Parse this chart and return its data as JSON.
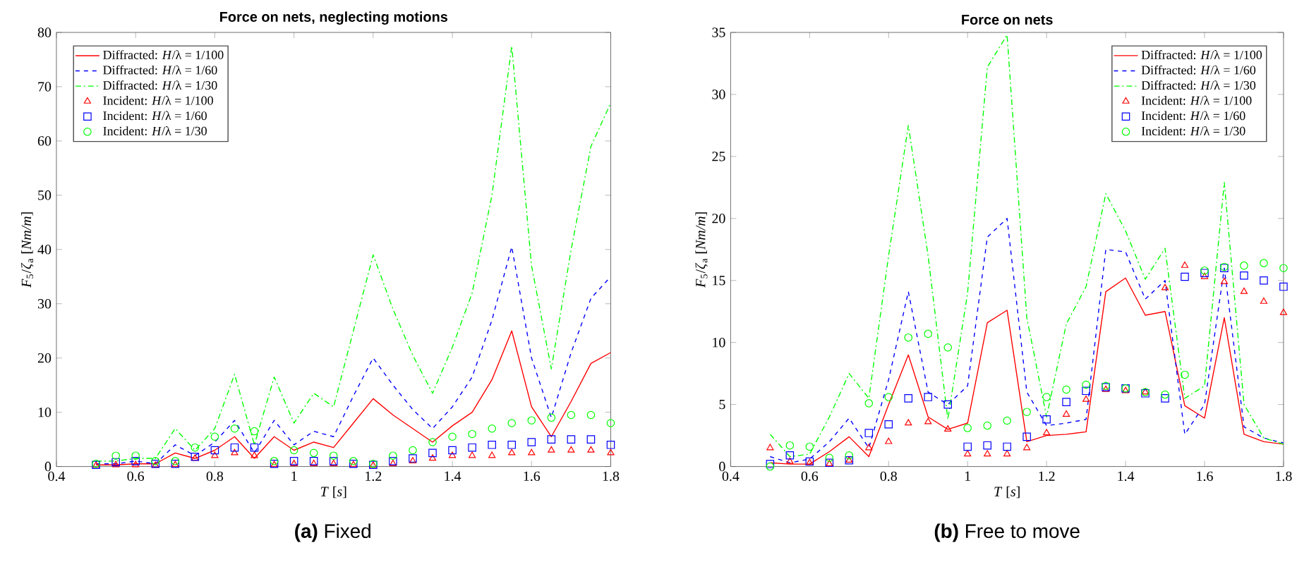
{
  "chart_data": [
    {
      "type": "line",
      "title": "Force on nets, neglecting motions",
      "xlabel": "*T* [*s*]",
      "ylabel": "*F*$_{5}$/*ζ*$_{a}$ [*Nm/m*]",
      "x": [
        0.5,
        0.55,
        0.6,
        0.65,
        0.7,
        0.75,
        0.8,
        0.85,
        0.9,
        0.95,
        1.0,
        1.05,
        1.1,
        1.15,
        1.2,
        1.25,
        1.3,
        1.35,
        1.4,
        1.45,
        1.5,
        1.55,
        1.6,
        1.65,
        1.7,
        1.75,
        1.8
      ],
      "xlim": [
        0.4,
        1.8
      ],
      "xticks": [
        0.4,
        0.6,
        0.8,
        1,
        1.2,
        1.4,
        1.6,
        1.8
      ],
      "ylim": [
        0,
        80
      ],
      "yticks": [
        0,
        10,
        20,
        30,
        40,
        50,
        60,
        70,
        80
      ],
      "legend": "top left",
      "annotations": [
        "**(a)** Fixed"
      ],
      "series": [
        {
          "name": "Diffracted: *H*/λ = 1/100",
          "line_style": "solid",
          "color": "#ff0000",
          "values": [
            0.3,
            0.3,
            0.5,
            0.5,
            2.5,
            1.5,
            3,
            5.5,
            1.5,
            5.5,
            3,
            4.5,
            3.5,
            8,
            12.5,
            9.5,
            7,
            4.5,
            7.5,
            10,
            16,
            25,
            11,
            5.5,
            12,
            19,
            21
          ]
        },
        {
          "name": "Diffracted: *H*/λ = 1/60",
          "line_style": "dashed",
          "color": "#0000ff",
          "values": [
            0.5,
            0.5,
            1,
            0.5,
            4,
            2,
            4.5,
            8.5,
            2.5,
            8.5,
            4,
            6.5,
            5.5,
            13,
            20,
            15,
            10.5,
            7,
            11,
            16.5,
            27,
            40.5,
            20,
            9,
            21,
            31,
            35
          ]
        },
        {
          "name": "Diffracted: *H*/λ = 1/30",
          "line_style": "dashdot",
          "color": "#00ff00",
          "values": [
            1,
            1,
            1.5,
            1.5,
            7,
            3,
            7,
            17,
            4,
            16.5,
            8,
            13.5,
            11,
            25,
            39,
            29,
            20.5,
            13.5,
            22,
            32,
            50,
            77.5,
            37,
            18,
            40,
            59,
            67
          ]
        },
        {
          "name": "Incident: *H*/λ = 1/100",
          "type": "scatter",
          "marker": "triangle",
          "color": "#ff0000",
          "values": [
            0.2,
            0.3,
            0.3,
            0.2,
            0.3,
            1.5,
            2,
            2.5,
            2,
            0.3,
            0.5,
            0.5,
            0.5,
            0.3,
            0.2,
            0.5,
            1,
            1.5,
            2,
            2,
            2,
            2.5,
            2.5,
            3,
            3,
            3,
            2.5
          ]
        },
        {
          "name": "Incident: *H*/λ = 1/60",
          "type": "scatter",
          "marker": "square",
          "color": "#0000ff",
          "values": [
            0.3,
            0.8,
            1,
            0.5,
            0.5,
            1.8,
            3,
            3.5,
            3.5,
            0.5,
            1,
            1,
            1,
            0.5,
            0.3,
            1,
            1.5,
            2.5,
            3,
            3.5,
            4,
            4,
            4.5,
            5,
            5,
            5,
            4
          ]
        },
        {
          "name": "Incident: *H*/λ = 1/30",
          "type": "scatter",
          "marker": "circle",
          "color": "#00ff00",
          "values": [
            0.5,
            2,
            2,
            1,
            1,
            3.5,
            5.5,
            7,
            6.5,
            1,
            3,
            2.5,
            2,
            1,
            0.5,
            2,
            3,
            4.5,
            5.5,
            6,
            7,
            8,
            8.5,
            9,
            9.5,
            9.5,
            8
          ]
        }
      ]
    },
    {
      "type": "line",
      "title": "Force on nets",
      "xlabel": "*T* [*s*]",
      "ylabel": "*F*$_{5}$/*ζ*$_{a}$ [*Nm/m*]",
      "x": [
        0.5,
        0.55,
        0.6,
        0.65,
        0.7,
        0.75,
        0.8,
        0.85,
        0.9,
        0.95,
        1.0,
        1.05,
        1.1,
        1.15,
        1.2,
        1.25,
        1.3,
        1.35,
        1.4,
        1.45,
        1.5,
        1.55,
        1.6,
        1.65,
        1.7,
        1.75,
        1.8
      ],
      "xlim": [
        0.4,
        1.8
      ],
      "xticks": [
        0.4,
        0.6,
        0.8,
        1,
        1.2,
        1.4,
        1.6,
        1.8
      ],
      "ylim": [
        0,
        35
      ],
      "yticks": [
        0,
        5,
        10,
        15,
        20,
        25,
        30,
        35
      ],
      "legend": "top right",
      "annotations": [
        "**(b)** Free to move"
      ],
      "series": [
        {
          "name": "Diffracted: *H*/λ = 1/100",
          "line_style": "solid",
          "color": "#ff0000",
          "values": [
            0.3,
            0.2,
            0.2,
            1.2,
            2.4,
            0.8,
            5,
            9,
            4,
            3,
            3.5,
            11.6,
            12.6,
            2,
            2.5,
            2.6,
            2.8,
            14.1,
            15.2,
            12.2,
            12.5,
            4.9,
            3.9,
            12,
            2.6,
            2,
            1.8
          ]
        },
        {
          "name": "Diffracted: *H*/λ = 1/60",
          "line_style": "dashed",
          "color": "#0000ff",
          "values": [
            0.8,
            0.3,
            0.6,
            2,
            3.9,
            1.5,
            7,
            14.1,
            6,
            5,
            6.5,
            18.5,
            20,
            6,
            3.3,
            3.5,
            3.8,
            17.5,
            17.3,
            13.5,
            15,
            2.6,
            5,
            16,
            3.2,
            2.3,
            1.9
          ]
        },
        {
          "name": "Diffracted: *H*/λ = 1/30",
          "line_style": "dashdot",
          "color": "#00ff00",
          "values": [
            2.6,
            0.8,
            1,
            4,
            7.5,
            5.5,
            17,
            27.5,
            17,
            3.8,
            14,
            32.2,
            34.8,
            12,
            4,
            11.5,
            14.5,
            22,
            19,
            15.1,
            17.6,
            5.5,
            6.5,
            22.9,
            5,
            2.3,
            1.8
          ]
        },
        {
          "name": "Incident: *H*/λ = 1/100",
          "type": "scatter",
          "marker": "triangle",
          "color": "#ff0000",
          "values": [
            1.5,
            0.4,
            0.3,
            0.2,
            0.5,
            1.5,
            2,
            3.5,
            3.6,
            3,
            1,
            1,
            1,
            1.5,
            2.7,
            4.2,
            5.4,
            6.2,
            6.1,
            6,
            14.4,
            16.2,
            15.3,
            14.9,
            14.1,
            13.3,
            12.4
          ]
        },
        {
          "name": "Incident: *H*/λ = 1/60",
          "type": "scatter",
          "marker": "square",
          "color": "#0000ff",
          "values": [
            0.2,
            0.9,
            0.4,
            0.3,
            0.5,
            2.7,
            3.4,
            5.5,
            5.6,
            5,
            1.6,
            1.7,
            1.6,
            2.4,
            3.8,
            5.2,
            6.1,
            6.4,
            6.3,
            5.9,
            5.5,
            15.3,
            15.6,
            16,
            15.4,
            15,
            14.5
          ]
        },
        {
          "name": "Incident: *H*/λ = 1/30",
          "type": "scatter",
          "marker": "circle",
          "color": "#00ff00",
          "values": [
            0,
            1.7,
            1.6,
            0.7,
            0.9,
            5.1,
            5.6,
            10.4,
            10.7,
            9.6,
            3.1,
            3.3,
            3.7,
            4.4,
            5.6,
            6.2,
            6.6,
            6.5,
            6.3,
            6,
            5.8,
            7.4,
            15.8,
            16.1,
            16.2,
            16.4,
            16
          ]
        }
      ]
    }
  ]
}
